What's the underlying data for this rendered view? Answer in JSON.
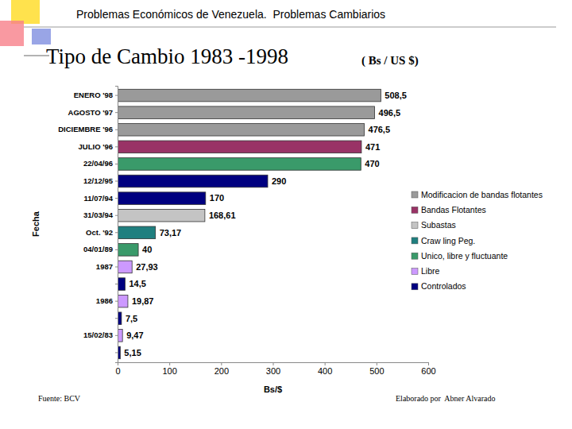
{
  "header": {
    "text": "Problemas Económicos de Venezuela.  Problemas Cambiarios"
  },
  "chart_data": {
    "type": "bar",
    "orientation": "horizontal",
    "title": "Tipo de Cambio 1983 -1998",
    "subtitle": "( Bs / US $)",
    "x_label": "Bs/$",
    "y_label": "Fecha",
    "categories": [
      "ENERO '98",
      "AGOSTO '97",
      "DICIEMBRE '96",
      "JULIO '96",
      "22/04/96",
      "12/12/95",
      "11/07/94",
      "31/03/94",
      "Oct. '92",
      "04/01/89",
      "1987",
      null,
      "1986",
      null,
      "15/02/83",
      null
    ],
    "series": [
      {
        "name": "Modificacion de bandas flotantes",
        "color": "#9a9a9a",
        "values": [
          508.5,
          496.5,
          476.5,
          null,
          null,
          null,
          null,
          null,
          null,
          null,
          null,
          null,
          null,
          null,
          null,
          null
        ],
        "value_labels": [
          "508,5",
          "496,5",
          "476,5",
          null,
          null,
          null,
          null,
          null,
          null,
          null,
          null,
          null,
          null,
          null,
          null,
          null
        ]
      },
      {
        "name": "Bandas Flotantes",
        "color": "#993366",
        "values": [
          null,
          null,
          null,
          471,
          null,
          null,
          null,
          null,
          null,
          null,
          null,
          null,
          null,
          null,
          null,
          null
        ],
        "value_labels": [
          null,
          null,
          null,
          "471",
          null,
          null,
          null,
          null,
          null,
          null,
          null,
          null,
          null,
          null,
          null,
          null
        ]
      },
      {
        "name": "Subastas",
        "color": "#c4c4c4",
        "values": [
          null,
          null,
          null,
          null,
          null,
          null,
          null,
          168.61,
          null,
          null,
          null,
          null,
          null,
          null,
          null,
          null
        ],
        "value_labels": [
          null,
          null,
          null,
          null,
          null,
          null,
          null,
          "168,61",
          null,
          null,
          null,
          null,
          null,
          null,
          null,
          null
        ]
      },
      {
        "name": "Craw ling Peg.",
        "color": "#1f7f7f",
        "values": [
          null,
          null,
          null,
          null,
          null,
          null,
          null,
          null,
          73.17,
          null,
          null,
          null,
          null,
          null,
          null,
          null
        ],
        "value_labels": [
          null,
          null,
          null,
          null,
          null,
          null,
          null,
          null,
          "73,17",
          null,
          null,
          null,
          null,
          null,
          null,
          null
        ]
      },
      {
        "name": "Unico, libre y fluctuante",
        "color": "#3a9a6a",
        "values": [
          null,
          null,
          null,
          null,
          470,
          null,
          null,
          null,
          null,
          40,
          null,
          null,
          null,
          null,
          null,
          null
        ],
        "value_labels": [
          null,
          null,
          null,
          null,
          "470",
          null,
          null,
          null,
          null,
          "40",
          null,
          null,
          null,
          null,
          null,
          null
        ]
      },
      {
        "name": "Libre",
        "color": "#cc99ff",
        "values": [
          null,
          null,
          null,
          null,
          null,
          null,
          null,
          null,
          null,
          null,
          27.93,
          null,
          19.87,
          null,
          9.47,
          null
        ],
        "value_labels": [
          null,
          null,
          null,
          null,
          null,
          null,
          null,
          null,
          null,
          null,
          "27,93",
          null,
          "19,87",
          null,
          "9,47",
          null
        ]
      },
      {
        "name": "Controlados",
        "color": "#000080",
        "values": [
          null,
          null,
          null,
          null,
          null,
          290,
          170,
          null,
          null,
          null,
          null,
          14.5,
          null,
          7.5,
          null,
          5.15
        ],
        "value_labels": [
          null,
          null,
          null,
          null,
          null,
          "290",
          "170",
          null,
          null,
          null,
          null,
          "14,5",
          null,
          "7,5",
          null,
          "5,15"
        ]
      }
    ],
    "xlim": [
      0,
      600
    ],
    "xticks": [
      0,
      100,
      200,
      300,
      400,
      500,
      600
    ],
    "grid": false,
    "legend": "right",
    "data_labels": true
  },
  "footer": {
    "source": "Fuente: BCV",
    "author": "Elaborado por  Abner Alvarado"
  }
}
